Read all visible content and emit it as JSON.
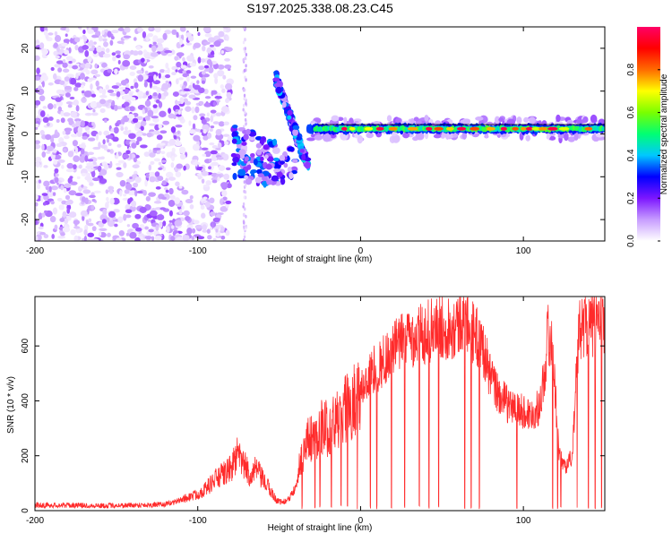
{
  "title": "S197.2025.338.08.23.C45",
  "chart_data": [
    {
      "type": "heatmap",
      "xlabel": "Height of straight line (km)",
      "ylabel": "Frequency (Hz)",
      "xlim": [
        -200,
        150
      ],
      "ylim": [
        -25,
        25
      ],
      "xticks": [
        -200,
        -100,
        0,
        100
      ],
      "yticks": [
        -20,
        -10,
        0,
        10,
        20
      ],
      "colorbar": {
        "label": "Normalized spectral amplitude",
        "range": [
          0,
          1
        ],
        "ticks": [
          0.0,
          0.2,
          0.4,
          0.6,
          0.8
        ],
        "colors": [
          "#ffffff",
          "#c79cff",
          "#7c16ff",
          "#0000ff",
          "#00c8ff",
          "#00ff73",
          "#7aff00",
          "#ffff00",
          "#ff6b00",
          "#ff0000",
          "#ff0066"
        ]
      },
      "features": [
        {
          "region": "noise",
          "x": [
            -200,
            -80
          ],
          "y": [
            -25,
            25
          ],
          "peak_amplitude": 0.15
        },
        {
          "region": "vertical streak",
          "x": [
            -72,
            -70
          ],
          "y": [
            -25,
            25
          ],
          "peak_amplitude": 0.08
        },
        {
          "region": "onset blobs",
          "x": [
            -78,
            -40
          ],
          "y": [
            -12,
            3
          ],
          "peak_amplitude": 0.35
        },
        {
          "region": "descending chirp",
          "x": [
            -52,
            -32
          ],
          "y": [
            -8,
            13
          ],
          "peak_amplitude": 0.35
        },
        {
          "region": "tonal line",
          "x": [
            -32,
            150
          ],
          "y": [
            0.3,
            2.3
          ],
          "center_frequency": 1.2,
          "peak_amplitude": 0.97
        }
      ]
    },
    {
      "type": "line",
      "xlabel": "Height of straight line (km)",
      "ylabel": "SNR (10 * v/v)",
      "xlim": [
        -200,
        150
      ],
      "ylim": [
        0,
        780
      ],
      "xticks": [
        -200,
        -100,
        0,
        100
      ],
      "yticks": [
        0,
        200,
        400,
        600
      ],
      "color": "#ff2b2b",
      "series": [
        {
          "x": [
            -200,
            -180,
            -160,
            -140,
            -120,
            -110,
            -100,
            -95,
            -90,
            -85,
            -80,
            -76,
            -72,
            -68,
            -64,
            -60,
            -56,
            -52,
            -48,
            -44,
            -40,
            -36,
            -32,
            -28,
            -24,
            -20,
            -16,
            -12,
            -8,
            -4,
            0,
            4,
            8,
            12,
            16,
            20,
            25,
            30,
            35,
            40,
            45,
            50,
            55,
            60,
            63,
            66,
            70,
            75,
            80,
            85,
            90,
            95,
            100,
            105,
            110,
            113,
            115,
            118,
            122,
            126,
            130,
            134,
            138,
            142,
            146,
            150
          ],
          "y": [
            20,
            20,
            18,
            20,
            22,
            40,
            60,
            80,
            110,
            130,
            150,
            200,
            170,
            130,
            150,
            110,
            80,
            40,
            30,
            40,
            100,
            200,
            260,
            280,
            300,
            300,
            320,
            340,
            380,
            400,
            430,
            480,
            510,
            530,
            560,
            590,
            610,
            630,
            640,
            650,
            660,
            670,
            670,
            680,
            710,
            680,
            640,
            600,
            480,
            420,
            390,
            370,
            360,
            350,
            380,
            500,
            650,
            580,
            200,
            160,
            200,
            650,
            690,
            670,
            700,
            690
          ]
        }
      ],
      "dropouts_x": [
        -36,
        -28,
        -25,
        -18,
        -12,
        -8,
        -2,
        6,
        10,
        19,
        27,
        36,
        42,
        48,
        64,
        68,
        73,
        96,
        118,
        121,
        123,
        133,
        140,
        144,
        148
      ],
      "grid": false
    }
  ]
}
